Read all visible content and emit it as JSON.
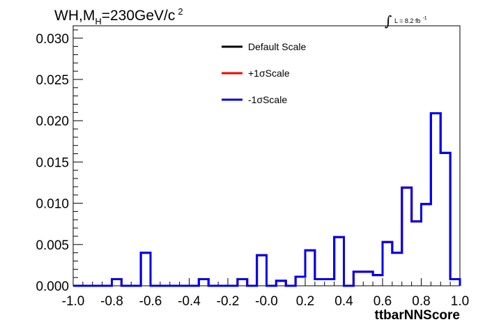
{
  "chart_data": {
    "type": "line",
    "title": {
      "prefix": "WH,M",
      "subscript": "H",
      "suffix": "=230GeV/c",
      "superscript": "2"
    },
    "luminosity": {
      "integral": "∫",
      "text": "L = 8.2 fb",
      "superscript": "-1"
    },
    "xlabel": "ttbarNNScore",
    "ylabel": "",
    "xlim": [
      -1.0,
      1.0
    ],
    "ylim": [
      0.0,
      0.0315
    ],
    "x_ticks": [
      -1.0,
      -0.8,
      -0.6,
      -0.4,
      -0.2,
      0.0,
      0.2,
      0.4,
      0.6,
      0.8,
      1.0
    ],
    "x_tick_labels": [
      "-1.0",
      "-0.8",
      "-0.6",
      "-0.4",
      "-0.2",
      "-0.0",
      "0.2",
      "0.4",
      "0.6",
      "0.8",
      "1.0"
    ],
    "y_ticks": [
      0.0,
      0.005,
      0.01,
      0.015,
      0.02,
      0.025,
      0.03
    ],
    "y_tick_labels": [
      "0.000",
      "0.005",
      "0.010",
      "0.015",
      "0.020",
      "0.025",
      "0.030"
    ],
    "bin_edges": [
      -1.0,
      -0.95,
      -0.9,
      -0.85,
      -0.8,
      -0.75,
      -0.7,
      -0.65,
      -0.6,
      -0.55,
      -0.5,
      -0.45,
      -0.4,
      -0.35,
      -0.3,
      -0.25,
      -0.2,
      -0.15,
      -0.1,
      -0.05,
      0.0,
      0.05,
      0.1,
      0.15,
      0.2,
      0.25,
      0.3,
      0.35,
      0.4,
      0.45,
      0.5,
      0.55,
      0.6,
      0.65,
      0.7,
      0.75,
      0.8,
      0.85,
      0.9,
      0.95,
      1.0
    ],
    "legend_position": "top-center",
    "series": [
      {
        "name": "Default Scale",
        "color": "#000000",
        "values": [
          0,
          0,
          0,
          0,
          0.0008,
          0,
          0,
          0.004,
          0,
          0,
          0,
          0,
          0,
          0.0008,
          0,
          0,
          0,
          0.0008,
          0,
          0.0037,
          0,
          0.0006,
          0,
          0.0011,
          0.0043,
          0.0008,
          0.0008,
          0.0059,
          0,
          0.0017,
          0.0017,
          0.0013,
          0.0053,
          0.004,
          0.0119,
          0.0078,
          0.0099,
          0.0209,
          0.0161,
          0.0008
        ]
      },
      {
        "name": "+1σScale",
        "color": "#ff0000",
        "values": [
          0,
          0,
          0,
          0,
          0.0008,
          0,
          0,
          0.004,
          0,
          0,
          0,
          0,
          0,
          0.0008,
          0,
          0,
          0,
          0.0008,
          0,
          0.0037,
          0,
          0.0006,
          0,
          0.0011,
          0.0043,
          0.0008,
          0.0008,
          0.0059,
          0,
          0.0017,
          0.0017,
          0.0013,
          0.0053,
          0.004,
          0.0119,
          0.0078,
          0.0099,
          0.0209,
          0.0161,
          0.0008
        ]
      },
      {
        "name": "-1σScale",
        "color": "#0000ee",
        "values": [
          0,
          0,
          0,
          0,
          0.0008,
          0,
          0,
          0.004,
          0,
          0,
          0,
          0,
          0,
          0.0008,
          0,
          0,
          0,
          0.0008,
          0,
          0.0037,
          0,
          0.0006,
          0,
          0.0011,
          0.0043,
          0.0008,
          0.0008,
          0.0059,
          0,
          0.0017,
          0.0017,
          0.0013,
          0.0053,
          0.004,
          0.0119,
          0.0078,
          0.0099,
          0.0209,
          0.0161,
          0.0008
        ]
      }
    ]
  }
}
